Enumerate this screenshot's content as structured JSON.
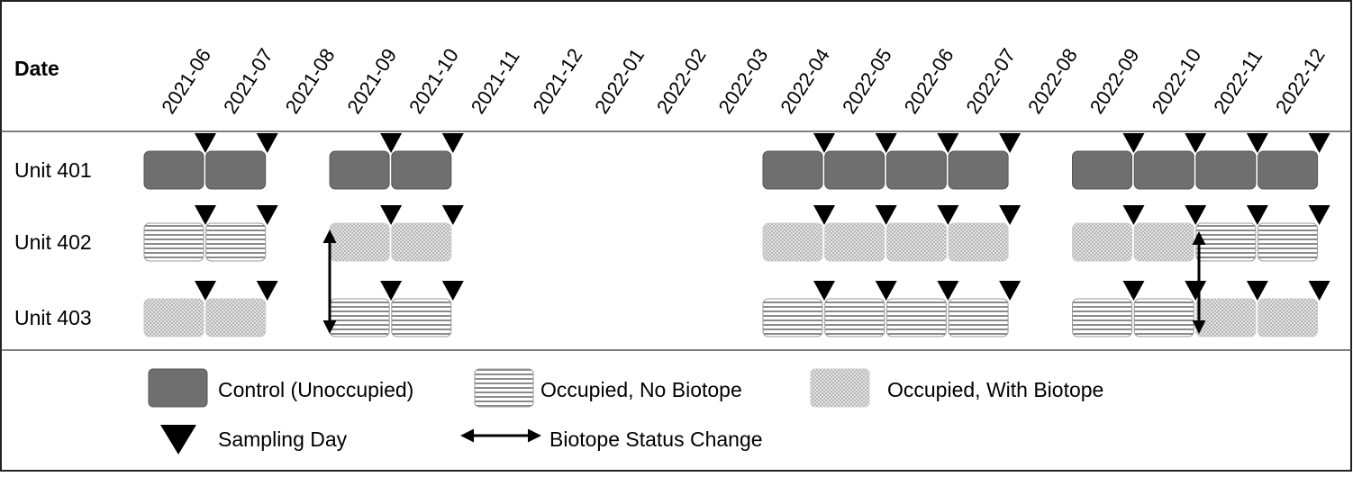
{
  "header": {
    "label": "Date",
    "dates": [
      "2021-06",
      "2021-07",
      "2021-08",
      "2021-09",
      "2021-10",
      "2021-11",
      "2021-12",
      "2022-01",
      "2022-02",
      "2022-03",
      "2022-04",
      "2022-05",
      "2022-06",
      "2022-07",
      "2022-08",
      "2022-09",
      "2022-10",
      "2022-11",
      "2022-12"
    ]
  },
  "units": [
    "Unit 401",
    "Unit 402",
    "Unit 403"
  ],
  "legend": {
    "control": "Control (Unoccupied)",
    "no_biotope": "Occupied, No Biotope",
    "with_biotope": "Occupied, With Biotope",
    "sampling": "Sampling Day",
    "change": "Biotope Status Change"
  }
}
